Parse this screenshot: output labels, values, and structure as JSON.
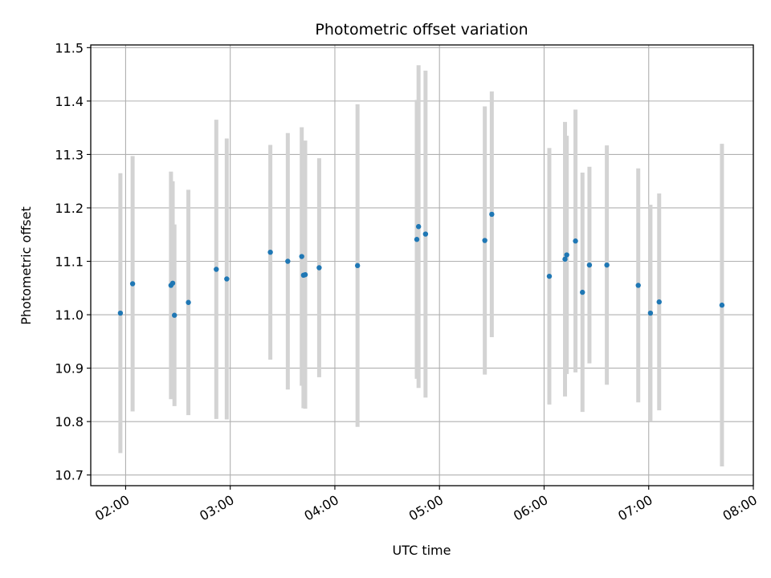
{
  "chart_data": {
    "type": "scatter",
    "title": "Photometric offset variation",
    "xlabel": "UTC time",
    "ylabel": "Photometric offset",
    "grid": true,
    "xlim": [
      "01:40",
      "08:00"
    ],
    "ylim": [
      10.68,
      11.505
    ],
    "xticks": [
      "02:00",
      "03:00",
      "04:00",
      "05:00",
      "06:00",
      "07:00",
      "08:00"
    ],
    "yticks": [
      "10.7",
      "10.8",
      "10.9",
      "11.0",
      "11.1",
      "11.2",
      "11.3",
      "11.4",
      "11.5"
    ],
    "colors": {
      "point": "#1f77b4",
      "errorbar": "#d3d3d3",
      "grid": "#b0b0b0"
    },
    "series": [
      {
        "points": [
          {
            "x": "01:57",
            "y": 11.003,
            "yerr": 0.262
          },
          {
            "x": "02:04",
            "y": 11.058,
            "yerr": 0.239
          },
          {
            "x": "02:26",
            "y": 11.055,
            "yerr": 0.213
          },
          {
            "x": "02:27",
            "y": 11.059,
            "yerr": 0.191
          },
          {
            "x": "02:28",
            "y": 10.999,
            "yerr": 0.17
          },
          {
            "x": "02:36",
            "y": 11.023,
            "yerr": 0.211
          },
          {
            "x": "02:52",
            "y": 11.085,
            "yerr": 0.28
          },
          {
            "x": "02:58",
            "y": 11.067,
            "yerr": 0.263
          },
          {
            "x": "03:23",
            "y": 11.117,
            "yerr": 0.201
          },
          {
            "x": "03:33",
            "y": 11.1,
            "yerr": 0.24
          },
          {
            "x": "03:41",
            "y": 11.109,
            "yerr": 0.242
          },
          {
            "x": "03:42",
            "y": 11.074,
            "yerr": 0.249
          },
          {
            "x": "03:43",
            "y": 11.075,
            "yerr": 0.251
          },
          {
            "x": "03:51",
            "y": 11.088,
            "yerr": 0.205
          },
          {
            "x": "04:13",
            "y": 11.092,
            "yerr": 0.302
          },
          {
            "x": "04:47",
            "y": 11.141,
            "yerr": 0.261
          },
          {
            "x": "04:48",
            "y": 11.165,
            "yerr": 0.302
          },
          {
            "x": "04:52",
            "y": 11.151,
            "yerr": 0.306
          },
          {
            "x": "05:26",
            "y": 11.139,
            "yerr": 0.251
          },
          {
            "x": "05:30",
            "y": 11.188,
            "yerr": 0.23
          },
          {
            "x": "06:03",
            "y": 11.072,
            "yerr": 0.24
          },
          {
            "x": "06:12",
            "y": 11.104,
            "yerr": 0.257
          },
          {
            "x": "06:13",
            "y": 11.112,
            "yerr": 0.223
          },
          {
            "x": "06:18",
            "y": 11.138,
            "yerr": 0.246
          },
          {
            "x": "06:22",
            "y": 11.042,
            "yerr": 0.224
          },
          {
            "x": "06:26",
            "y": 11.093,
            "yerr": 0.184
          },
          {
            "x": "06:36",
            "y": 11.093,
            "yerr": 0.224
          },
          {
            "x": "06:54",
            "y": 11.055,
            "yerr": 0.219
          },
          {
            "x": "07:01",
            "y": 11.003,
            "yerr": 0.203
          },
          {
            "x": "07:06",
            "y": 11.024,
            "yerr": 0.203
          },
          {
            "x": "07:42",
            "y": 11.018,
            "yerr": 0.302
          }
        ]
      }
    ]
  }
}
